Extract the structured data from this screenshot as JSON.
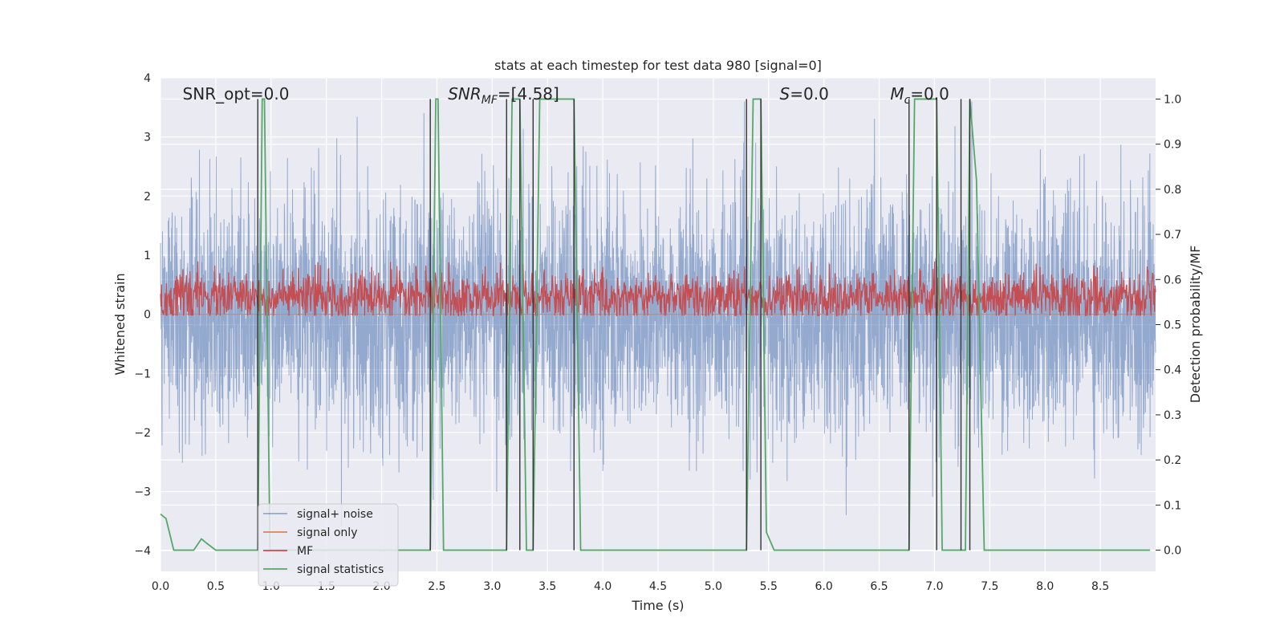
{
  "chart_data": {
    "type": "line",
    "title": "stats at each timestep for test data 980 [signal=0]",
    "xlabel": "Time (s)",
    "ylabel_left": "Whitened strain",
    "ylabel_right": "Detection probability/MF",
    "xlim": [
      0.0,
      9.0
    ],
    "ylim_left": [
      -4.35,
      4.0
    ],
    "ylim_right": [
      -0.047,
      1.047
    ],
    "x_ticks": [
      0.0,
      0.5,
      1.0,
      1.5,
      2.0,
      2.5,
      3.0,
      3.5,
      4.0,
      4.5,
      5.0,
      5.5,
      6.0,
      6.5,
      7.0,
      7.5,
      8.0,
      8.5
    ],
    "x_tick_labels": [
      "0.0",
      "0.5",
      "1.0",
      "1.5",
      "2.0",
      "2.5",
      "3.0",
      "3.5",
      "4.0",
      "4.5",
      "5.0",
      "5.5",
      "6.0",
      "6.5",
      "7.0",
      "7.5",
      "8.0",
      "8.5"
    ],
    "y_left_ticks": [
      -4,
      -3,
      -2,
      -1,
      0,
      1,
      2,
      3,
      4
    ],
    "y_left_tick_labels": [
      "−4",
      "−3",
      "−2",
      "−1",
      "0",
      "1",
      "2",
      "3",
      "4"
    ],
    "y_right_ticks": [
      0.0,
      0.1,
      0.2,
      0.3,
      0.4,
      0.5,
      0.6,
      0.7,
      0.8,
      0.9,
      1.0
    ],
    "y_right_tick_labels": [
      "0.0",
      "0.1",
      "0.2",
      "0.3",
      "0.4",
      "0.5",
      "0.6",
      "0.7",
      "0.8",
      "0.9",
      "1.0"
    ],
    "grid": true,
    "legend_position": "lower-left",
    "annotations": [
      {
        "text": "SNR_opt=0.0",
        "x": 0.2
      },
      {
        "base": "SNR",
        "sub": "MF",
        "rest": "=[4.58]",
        "italic": true,
        "x": 2.6
      },
      {
        "base": "S",
        "sub": "",
        "rest": "=0.0",
        "italic": true,
        "x": 5.6
      },
      {
        "base": "M",
        "sub": "c",
        "rest": "=0.0",
        "italic": true,
        "x": 6.6
      }
    ],
    "series": [
      {
        "name": "signal+ noise",
        "color": "#4c72b0",
        "axis": "left",
        "style": "noise",
        "envelope": {
          "mean": 0.0,
          "sigma": 1.0,
          "min": -3.6,
          "max": 3.6,
          "points": 4500
        }
      },
      {
        "name": "signal only",
        "color": "#dd8452",
        "axis": "left",
        "x": [
          0.0,
          9.0
        ],
        "y": [
          0.0,
          0.0
        ]
      },
      {
        "name": "MF",
        "color": "#c44e52",
        "axis": "right",
        "style": "noise",
        "envelope": {
          "mean": 0.56,
          "sigma": 0.028,
          "min": 0.52,
          "max": 0.64,
          "points": 2000
        }
      },
      {
        "name": "signal statistics",
        "color": "#55a868",
        "axis": "right",
        "x": [
          0.0,
          0.05,
          0.12,
          0.3,
          0.37,
          0.42,
          0.5,
          0.88,
          0.92,
          0.94,
          0.99,
          2.44,
          2.49,
          2.51,
          2.56,
          3.13,
          3.18,
          3.25,
          3.31,
          3.37,
          3.43,
          3.74,
          3.8,
          5.3,
          5.36,
          5.43,
          5.48,
          5.55,
          6.77,
          6.82,
          7.02,
          7.07,
          7.28,
          7.32,
          7.38,
          7.45,
          8.95
        ],
        "y": [
          0.08,
          0.07,
          0.0,
          0.0,
          0.025,
          0.015,
          0.0,
          0.0,
          1.0,
          1.0,
          0.0,
          0.0,
          1.0,
          1.0,
          0.0,
          0.0,
          1.0,
          1.0,
          0.0,
          0.0,
          1.0,
          1.0,
          0.0,
          0.0,
          1.0,
          1.0,
          0.04,
          0.0,
          0.0,
          1.0,
          1.0,
          0.0,
          0.0,
          1.0,
          0.82,
          0.0,
          0.0
        ]
      },
      {
        "name": "",
        "color": "#333333",
        "axis": "right",
        "style": "vlines",
        "x": [
          0.88,
          2.44,
          3.13,
          3.25,
          3.37,
          3.74,
          5.3,
          5.43,
          6.77,
          7.02,
          7.24,
          7.32
        ],
        "y_range": [
          0.0,
          1.0
        ]
      }
    ]
  }
}
